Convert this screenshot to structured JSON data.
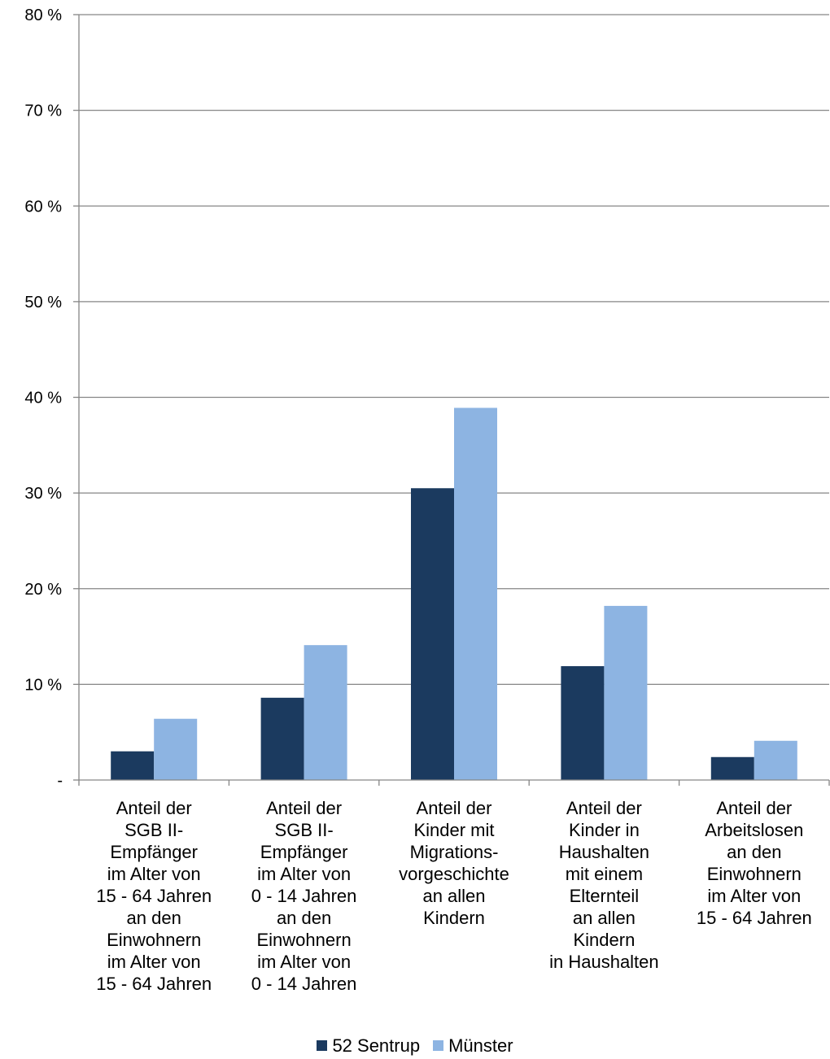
{
  "chart_data": {
    "type": "bar",
    "categories": [
      "Anteil der\nSGB II-\nEmpfänger\nim Alter von\n15 - 64 Jahren\nan den\nEinwohnern\nim Alter von\n15 - 64 Jahren",
      "Anteil der\nSGB II-\nEmpfänger\nim Alter von\n0 - 14 Jahren\nan den\nEinwohnern\nim Alter von\n0 - 14 Jahren",
      "Anteil der\nKinder mit\nMigrations-\nvorgeschichte\nan allen\nKindern",
      "Anteil der\nKinder in\nHaushalten\nmit einem\nElternteil\nan allen\nKindern\nin Haushalten",
      "Anteil der\nArbeitslosen\nan den\nEinwohnern\nim Alter von\n15 - 64 Jahren"
    ],
    "series": [
      {
        "name": "52 Sentrup",
        "color": "#1b3a5f",
        "values": [
          3.0,
          8.6,
          30.5,
          11.9,
          2.4
        ]
      },
      {
        "name": "Münster",
        "color": "#8db4e2",
        "values": [
          6.4,
          14.1,
          38.9,
          18.2,
          4.1
        ]
      }
    ],
    "ylim": [
      0,
      80
    ],
    "yticks": [
      {
        "value": 0,
        "label": "-"
      },
      {
        "value": 10,
        "label": "10 %"
      },
      {
        "value": 20,
        "label": "20 %"
      },
      {
        "value": 30,
        "label": "30 %"
      },
      {
        "value": 40,
        "label": "40 %"
      },
      {
        "value": 50,
        "label": "50 %"
      },
      {
        "value": 60,
        "label": "60 %"
      },
      {
        "value": 70,
        "label": "70 %"
      },
      {
        "value": 80,
        "label": "80 %"
      }
    ],
    "grid": true,
    "legend_position": "bottom",
    "title": "",
    "xlabel": "",
    "ylabel": ""
  }
}
